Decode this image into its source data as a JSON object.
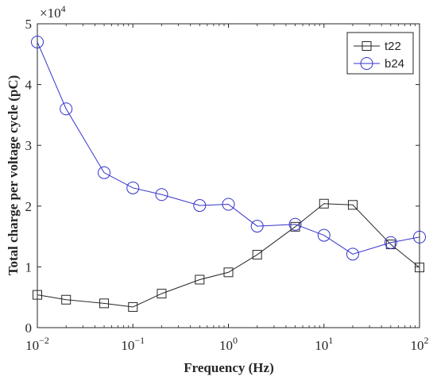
{
  "chart_data": {
    "type": "line",
    "xlabel": "Frequency (Hz)",
    "ylabel": "Total charge per voltage cycle (pC)",
    "xscale": "log",
    "xlim": [
      0.01,
      100
    ],
    "ylim": [
      0,
      5
    ],
    "y_multiplier": "×10",
    "y_multiplier_exponent": "4",
    "y_ticks": [
      {
        "value": 0,
        "label": "0"
      },
      {
        "value": 1,
        "label": "1"
      },
      {
        "value": 2,
        "label": "2"
      },
      {
        "value": 3,
        "label": "3"
      },
      {
        "value": 4,
        "label": "4"
      },
      {
        "value": 5,
        "label": "5"
      }
    ],
    "x_ticks": [
      {
        "value": 0.01,
        "base": "10",
        "exp": "−2"
      },
      {
        "value": 0.1,
        "base": "10",
        "exp": "−1"
      },
      {
        "value": 1,
        "base": "10",
        "exp": "0"
      },
      {
        "value": 10,
        "base": "10",
        "exp": "1"
      },
      {
        "value": 100,
        "base": "10",
        "exp": "2"
      }
    ],
    "grid": false,
    "legend_position": "top-right",
    "series": [
      {
        "name": "t22",
        "color": "#262626",
        "marker": "square",
        "x": [
          0.01,
          0.02,
          0.05,
          0.1,
          0.2,
          0.5,
          1,
          2,
          5,
          10,
          20,
          50,
          100
        ],
        "y": [
          0.54,
          0.46,
          0.4,
          0.34,
          0.56,
          0.79,
          0.91,
          1.2,
          1.66,
          2.04,
          2.02,
          1.37,
          0.99
        ]
      },
      {
        "name": "b24",
        "color": "#3333cc",
        "marker": "circle",
        "x": [
          0.01,
          0.02,
          0.05,
          0.1,
          0.2,
          0.5,
          1,
          2,
          5,
          10,
          20,
          50,
          100
        ],
        "y": [
          4.7,
          3.6,
          2.55,
          2.3,
          2.19,
          2.01,
          2.03,
          1.67,
          1.7,
          1.52,
          1.21,
          1.4,
          1.49
        ]
      }
    ]
  }
}
